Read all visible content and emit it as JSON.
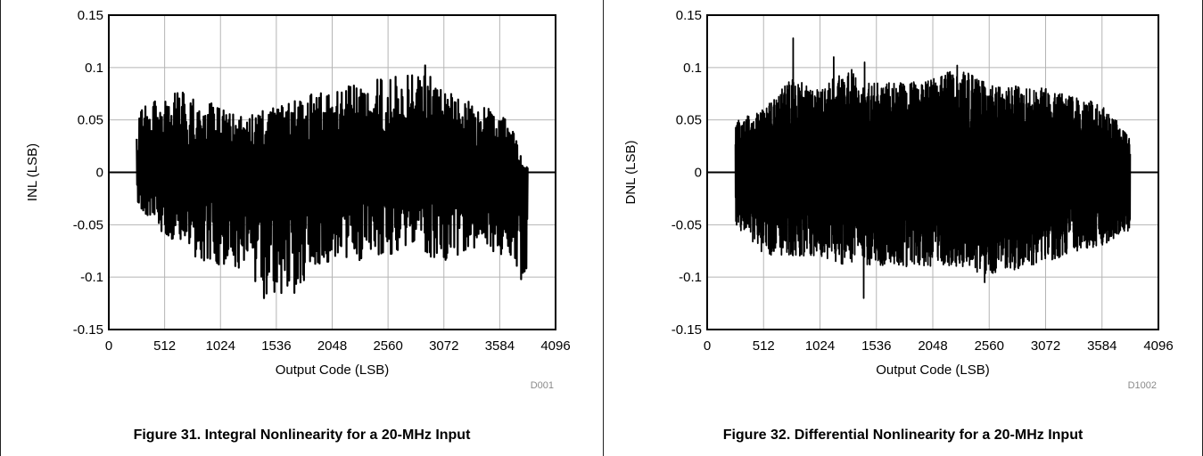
{
  "chart_data": [
    {
      "type": "line",
      "caption": "Figure 31. Integral Nonlinearity for a 20-MHz Input",
      "xlabel": "Output Code (LSB)",
      "ylabel": "INL (LSB)",
      "figure_code": "D001",
      "xlim": [
        0,
        4096
      ],
      "ylim": [
        -0.15,
        0.15
      ],
      "xticks": [
        0,
        512,
        1024,
        1536,
        2048,
        2560,
        3072,
        3584,
        4096
      ],
      "xtick_labels": [
        "0",
        "512",
        "1024",
        "1536",
        "2048",
        "2560",
        "3072",
        "3584",
        "4096"
      ],
      "yticks": [
        -0.15,
        -0.1,
        -0.05,
        0,
        0.05,
        0.1,
        0.15
      ],
      "ytick_labels": [
        "-0.15",
        "-0.1",
        "-0.05",
        "0",
        "0.05",
        "0.1",
        "0.15"
      ],
      "grid": true,
      "code_range": [
        256,
        3840
      ],
      "envelope": [
        {
          "x": 256,
          "max": 0.06,
          "min": -0.03
        },
        {
          "x": 512,
          "max": 0.075,
          "min": -0.06
        },
        {
          "x": 768,
          "max": 0.078,
          "min": -0.08
        },
        {
          "x": 1024,
          "max": 0.06,
          "min": -0.09
        },
        {
          "x": 1280,
          "max": 0.055,
          "min": -0.1
        },
        {
          "x": 1450,
          "max": 0.06,
          "min": -0.12
        },
        {
          "x": 1700,
          "max": 0.07,
          "min": -0.115
        },
        {
          "x": 2048,
          "max": 0.08,
          "min": -0.085
        },
        {
          "x": 2400,
          "max": 0.088,
          "min": -0.085
        },
        {
          "x": 2800,
          "max": 0.095,
          "min": -0.07
        },
        {
          "x": 2900,
          "max": 0.102,
          "min": -0.085
        },
        {
          "x": 3072,
          "max": 0.08,
          "min": -0.085
        },
        {
          "x": 3400,
          "max": 0.065,
          "min": -0.07
        },
        {
          "x": 3700,
          "max": 0.05,
          "min": -0.085
        },
        {
          "x": 3800,
          "max": 0.005,
          "min": -0.1
        },
        {
          "x": 3840,
          "max": 0.005,
          "min": -0.095
        }
      ],
      "extremes": [
        {
          "x": 2900,
          "y": 0.102
        },
        {
          "x": 1420,
          "y": -0.12
        },
        {
          "x": 1700,
          "y": -0.115
        },
        {
          "x": 3780,
          "y": -0.102
        }
      ]
    },
    {
      "type": "line",
      "caption": "Figure 32. Differential Nonlinearity for a 20-MHz Input",
      "xlabel": "Output Code (LSB)",
      "ylabel": "DNL (LSB)",
      "figure_code": "D1002",
      "xlim": [
        0,
        4096
      ],
      "ylim": [
        -0.15,
        0.15
      ],
      "xticks": [
        0,
        512,
        1024,
        1536,
        2048,
        2560,
        3072,
        3584,
        4096
      ],
      "xtick_labels": [
        "0",
        "512",
        "1024",
        "1536",
        "2048",
        "2560",
        "3072",
        "3584",
        "4096"
      ],
      "yticks": [
        -0.15,
        -0.1,
        -0.05,
        0,
        0.05,
        0.1,
        0.15
      ],
      "ytick_labels": [
        "-0.15",
        "-0.1",
        "-0.05",
        "0",
        "0.05",
        "0.1",
        "0.15"
      ],
      "grid": true,
      "code_range": [
        256,
        3840
      ],
      "envelope": [
        {
          "x": 256,
          "max": 0.05,
          "min": -0.05
        },
        {
          "x": 512,
          "max": 0.06,
          "min": -0.08
        },
        {
          "x": 768,
          "max": 0.09,
          "min": -0.08
        },
        {
          "x": 1024,
          "max": 0.08,
          "min": -0.08
        },
        {
          "x": 1280,
          "max": 0.1,
          "min": -0.09
        },
        {
          "x": 1536,
          "max": 0.085,
          "min": -0.09
        },
        {
          "x": 2048,
          "max": 0.09,
          "min": -0.09
        },
        {
          "x": 2300,
          "max": 0.1,
          "min": -0.09
        },
        {
          "x": 2560,
          "max": 0.085,
          "min": -0.1
        },
        {
          "x": 3072,
          "max": 0.08,
          "min": -0.085
        },
        {
          "x": 3584,
          "max": 0.065,
          "min": -0.07
        },
        {
          "x": 3840,
          "max": 0.035,
          "min": -0.055
        }
      ],
      "extremes": [
        {
          "x": 780,
          "y": 0.128
        },
        {
          "x": 1150,
          "y": 0.11
        },
        {
          "x": 1430,
          "y": 0.105
        },
        {
          "x": 1420,
          "y": -0.12
        },
        {
          "x": 2520,
          "y": -0.105
        },
        {
          "x": 2270,
          "y": 0.102
        }
      ]
    }
  ]
}
